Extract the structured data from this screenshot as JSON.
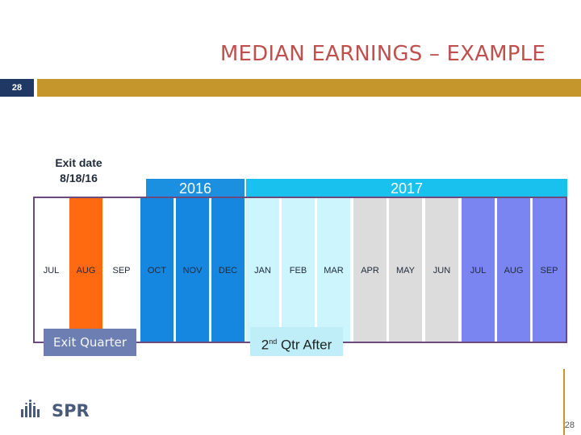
{
  "slide": {
    "title": "MEDIAN EARNINGS – EXAMPLE",
    "badge": "28",
    "page_number": "28"
  },
  "exit_date": {
    "line1": "Exit date",
    "line2": "8/18/16"
  },
  "years": {
    "y2016": "2016",
    "y2017": "2017"
  },
  "months": [
    {
      "label": "JUL",
      "color": "#ffffff"
    },
    {
      "label": "AUG",
      "color": "#ff6a10"
    },
    {
      "label": "SEP",
      "color": "#ffffff"
    },
    {
      "label": "OCT",
      "color": "#1687e1"
    },
    {
      "label": "NOV",
      "color": "#1687e1"
    },
    {
      "label": "DEC",
      "color": "#1687e1"
    },
    {
      "label": "JAN",
      "color": "#ccf5fd"
    },
    {
      "label": "FEB",
      "color": "#ccf5fd"
    },
    {
      "label": "MAR",
      "color": "#ccf5fd"
    },
    {
      "label": "APR",
      "color": "#dcdcdc"
    },
    {
      "label": "MAY",
      "color": "#dcdcdc"
    },
    {
      "label": "JUN",
      "color": "#dcdcdc"
    },
    {
      "label": "JUL",
      "color": "#7b85f2"
    },
    {
      "label": "AUG",
      "color": "#7b85f2"
    },
    {
      "label": "SEP",
      "color": "#7b85f2"
    }
  ],
  "labels": {
    "exit_quarter": "Exit Quarter",
    "qtr_after_num": "2",
    "qtr_after_sup": "nd",
    "qtr_after_rest": " Qtr After"
  },
  "logo": {
    "text": "SPR"
  }
}
